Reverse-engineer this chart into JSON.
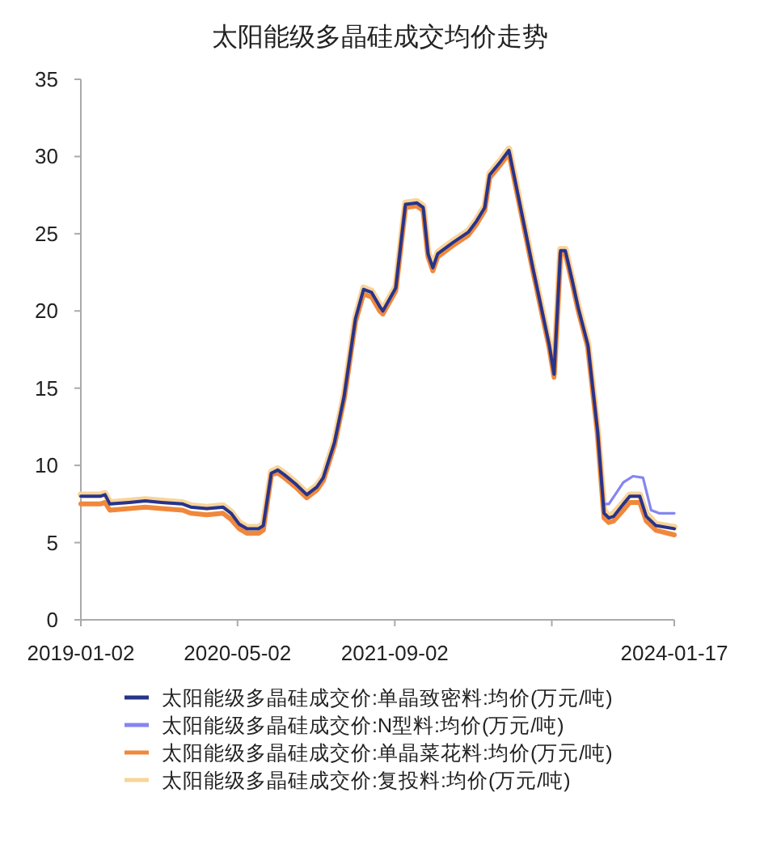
{
  "chart_data": {
    "type": "line",
    "title": "太阳能级多晶硅成交均价走势",
    "x": [
      "2019-01-02",
      "2019-03-03",
      "2019-03-18",
      "2019-04-02",
      "2019-06-01",
      "2019-07-21",
      "2019-09-10",
      "2019-11-14",
      "2019-12-09",
      "2020-01-28",
      "2020-03-18",
      "2020-04-12",
      "2020-05-07",
      "2020-06-01",
      "2020-07-06",
      "2020-07-21",
      "2020-08-15",
      "2020-09-04",
      "2020-09-24",
      "2020-10-29",
      "2020-12-03",
      "2021-01-03",
      "2021-01-23",
      "2021-02-27",
      "2021-03-29",
      "2021-05-03",
      "2021-05-28",
      "2021-06-22",
      "2021-07-17",
      "2021-07-27",
      "2021-09-05",
      "2021-10-05",
      "2021-11-09",
      "2021-11-29",
      "2021-12-14",
      "2021-12-29",
      "2022-01-13",
      "2022-02-27",
      "2022-04-18",
      "2022-05-13",
      "2022-06-08",
      "2022-06-23",
      "2022-07-28",
      "2022-08-22",
      "2022-11-05",
      "2022-12-25",
      "2023-01-09",
      "2023-01-29",
      "2023-02-13",
      "2023-03-05",
      "2023-03-25",
      "2023-04-24",
      "2023-05-24",
      "2023-06-13",
      "2023-06-28",
      "2023-07-13",
      "2023-08-12",
      "2023-09-01",
      "2023-10-02",
      "2023-10-22",
      "2023-11-21",
      "2024-01-17"
    ],
    "series": [
      {
        "name": "太阳能级多晶硅成交价:复投料:均价(万元/吨)",
        "color": "#f9d499",
        "values": [
          8.1,
          8.1,
          8.2,
          7.6,
          7.7,
          7.8,
          7.7,
          7.6,
          7.4,
          7.3,
          7.4,
          7.0,
          6.3,
          6.0,
          6.0,
          6.2,
          9.6,
          9.8,
          9.5,
          8.9,
          8.2,
          8.7,
          9.3,
          11.6,
          14.6,
          19.6,
          21.5,
          21.3,
          20.4,
          20.1,
          21.6,
          27.0,
          27.1,
          26.8,
          23.8,
          22.9,
          23.8,
          24.5,
          25.2,
          25.9,
          26.8,
          28.9,
          29.8,
          30.5,
          22.8,
          17.9,
          16.0,
          24.0,
          24.0,
          22.2,
          20.3,
          17.9,
          12.3,
          7.1,
          6.7,
          6.9,
          7.6,
          8.1,
          8.1,
          6.9,
          6.2,
          6.0
        ]
      },
      {
        "name": "太阳能级多晶硅成交价:单晶菜花料:均价(万元/吨)",
        "color": "#f0883c",
        "values": [
          7.5,
          7.5,
          7.6,
          7.1,
          7.2,
          7.3,
          7.2,
          7.1,
          6.9,
          6.8,
          6.9,
          6.5,
          5.9,
          5.6,
          5.6,
          5.8,
          9.4,
          9.5,
          9.2,
          8.6,
          7.9,
          8.4,
          9.0,
          11.3,
          14.3,
          19.3,
          21.1,
          20.9,
          20.0,
          19.8,
          21.3,
          26.7,
          26.8,
          26.5,
          23.5,
          22.6,
          23.5,
          24.2,
          24.9,
          25.6,
          26.5,
          28.6,
          29.5,
          30.2,
          22.5,
          17.6,
          15.7,
          23.7,
          23.7,
          21.9,
          20.0,
          17.6,
          12.0,
          6.6,
          6.3,
          6.4,
          7.1,
          7.6,
          7.6,
          6.4,
          5.8,
          5.5
        ]
      },
      {
        "name": "太阳能级多晶硅成交价:N型料:均价(万元/吨)",
        "color": "#8585f2",
        "x": [
          "2023-06-13",
          "2023-06-28",
          "2023-08-12",
          "2023-09-11",
          "2023-10-12",
          "2023-11-06",
          "2023-12-01",
          "2024-01-17"
        ],
        "values": [
          7.5,
          7.5,
          8.9,
          9.3,
          9.2,
          7.1,
          6.9,
          6.9
        ]
      },
      {
        "name": "太阳能级多晶硅成交价:单晶致密料:均价(万元/吨)",
        "color": "#27348b",
        "values": [
          8.0,
          8.0,
          8.1,
          7.5,
          7.6,
          7.7,
          7.6,
          7.5,
          7.3,
          7.2,
          7.3,
          6.9,
          6.2,
          5.9,
          5.9,
          6.1,
          9.5,
          9.7,
          9.4,
          8.8,
          8.1,
          8.6,
          9.2,
          11.5,
          14.5,
          19.5,
          21.4,
          21.2,
          20.3,
          20.0,
          21.5,
          26.9,
          27.0,
          26.7,
          23.7,
          22.8,
          23.7,
          24.4,
          25.1,
          25.8,
          26.7,
          28.8,
          29.7,
          30.4,
          22.7,
          17.8,
          15.9,
          23.9,
          23.9,
          22.1,
          20.2,
          17.8,
          12.2,
          6.9,
          6.6,
          6.7,
          7.5,
          8.0,
          8.0,
          6.7,
          6.1,
          5.9
        ]
      }
    ],
    "xlim": [
      "2019-01-02",
      "2024-01-17"
    ],
    "xticks": [
      {
        "value": "2019-01-02",
        "label": "2019-01-02"
      },
      {
        "value": "2020-05-02",
        "label": "2020-05-02"
      },
      {
        "value": "2021-09-02",
        "label": "2021-09-02"
      },
      {
        "value": "2023-01-02",
        "label": null
      },
      {
        "value": "2024-01-17",
        "label": "2024-01-17"
      }
    ],
    "ylim": [
      0,
      35
    ],
    "yticks": [
      0,
      5,
      10,
      15,
      20,
      25,
      30,
      35
    ],
    "legend": "bottom",
    "marker": "none",
    "line_style": "solid",
    "grid": false
  }
}
